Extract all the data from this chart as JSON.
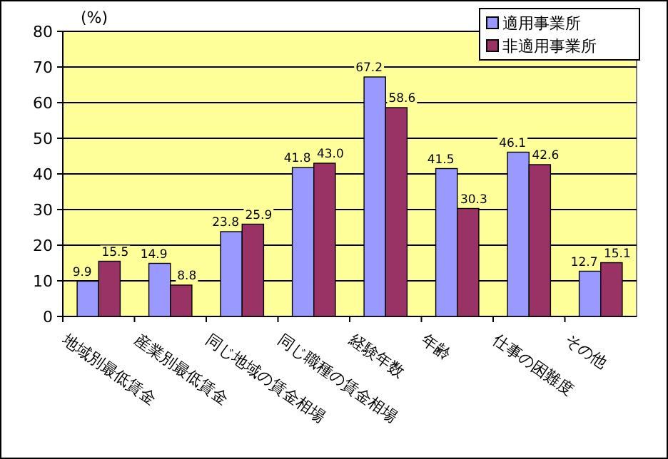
{
  "chart_data": {
    "type": "bar",
    "ylabel": "(%)",
    "categories": [
      "地域別最低賃金",
      "産業別最低賃金",
      "同じ地域の賃金相場",
      "同じ職種の賃金相場",
      "経験年数",
      "年齢",
      "仕事の困難度",
      "その他"
    ],
    "series": [
      {
        "name": "適用事業所",
        "color": "#9999ff",
        "values": [
          9.9,
          14.9,
          23.8,
          41.8,
          67.2,
          41.5,
          46.1,
          12.7
        ],
        "value_labels": [
          "9.9",
          "14.9",
          "23.8",
          "41.8",
          "67.2",
          "41.5",
          "46.1",
          "12.7"
        ]
      },
      {
        "name": "非適用事業所",
        "color": "#993366",
        "values": [
          15.5,
          8.8,
          25.9,
          43.0,
          58.6,
          30.3,
          42.6,
          15.1
        ],
        "value_labels": [
          "15.5",
          "8.8",
          "25.9",
          "43.0",
          "58.6",
          "30.3",
          "42.6",
          "15.1"
        ]
      }
    ],
    "ylim": [
      0,
      80
    ],
    "yticks": [
      0,
      10,
      20,
      30,
      40,
      50,
      60,
      70,
      80
    ],
    "grid": "y",
    "legend": "top right"
  }
}
